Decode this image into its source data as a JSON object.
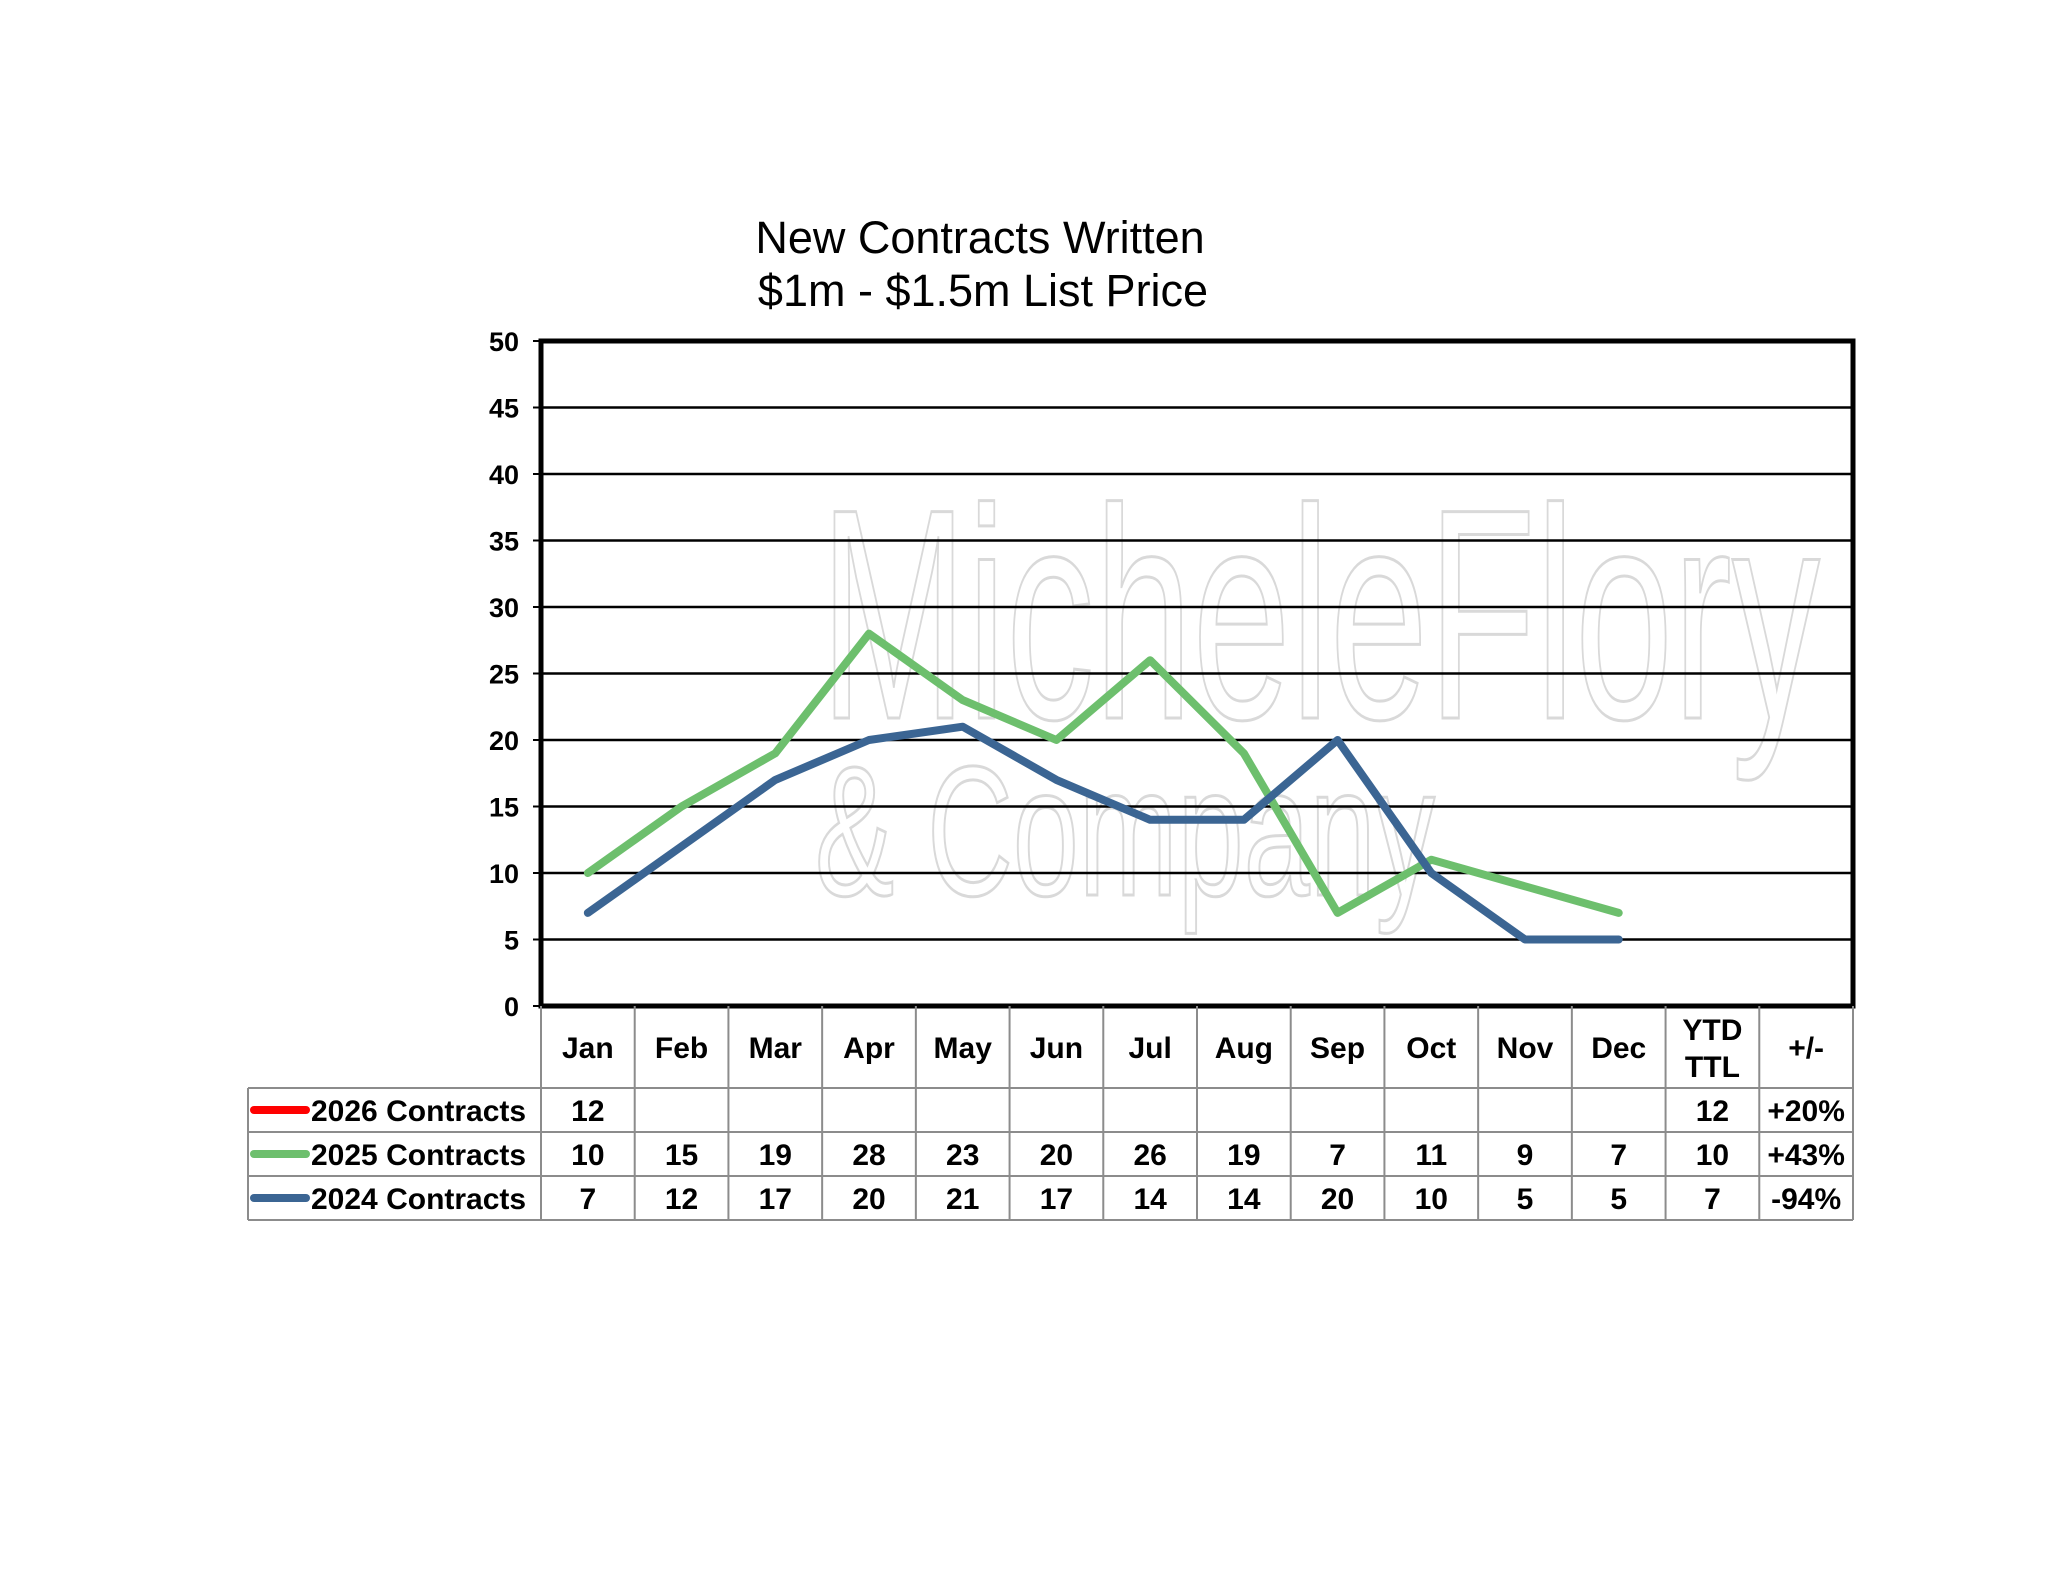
{
  "chart_data": {
    "type": "line",
    "title": "New Contracts Written",
    "subtitle": "$1m - $1.5m List Price",
    "categories": [
      "Jan",
      "Feb",
      "Mar",
      "Apr",
      "May",
      "Jun",
      "Jul",
      "Aug",
      "Sep",
      "Oct",
      "Nov",
      "Dec"
    ],
    "ylim": [
      0,
      50
    ],
    "yticks": [
      0,
      5,
      10,
      15,
      20,
      25,
      30,
      35,
      40,
      45,
      50
    ],
    "grid": true,
    "legend": "data-table-bottom",
    "table_headers": {
      "ytd": [
        "YTD",
        "TTL"
      ],
      "change": "+/-"
    },
    "series": [
      {
        "name": "2026 Contracts",
        "color": "#ff0000",
        "values": [
          12,
          null,
          null,
          null,
          null,
          null,
          null,
          null,
          null,
          null,
          null,
          null
        ],
        "ytd": "12",
        "change": "+20%"
      },
      {
        "name": "2025 Contracts",
        "color": "#6dbf6d",
        "values": [
          10,
          15,
          19,
          28,
          23,
          20,
          26,
          19,
          7,
          11,
          9,
          7
        ],
        "ytd": "10",
        "change": "+43%"
      },
      {
        "name": "2024 Contracts",
        "color": "#3b6593",
        "values": [
          7,
          12,
          17,
          20,
          21,
          17,
          14,
          14,
          20,
          10,
          5,
          5
        ],
        "ytd": "7",
        "change": "-94%"
      }
    ],
    "watermark": [
      "MicheleFlory",
      "& Company"
    ]
  }
}
